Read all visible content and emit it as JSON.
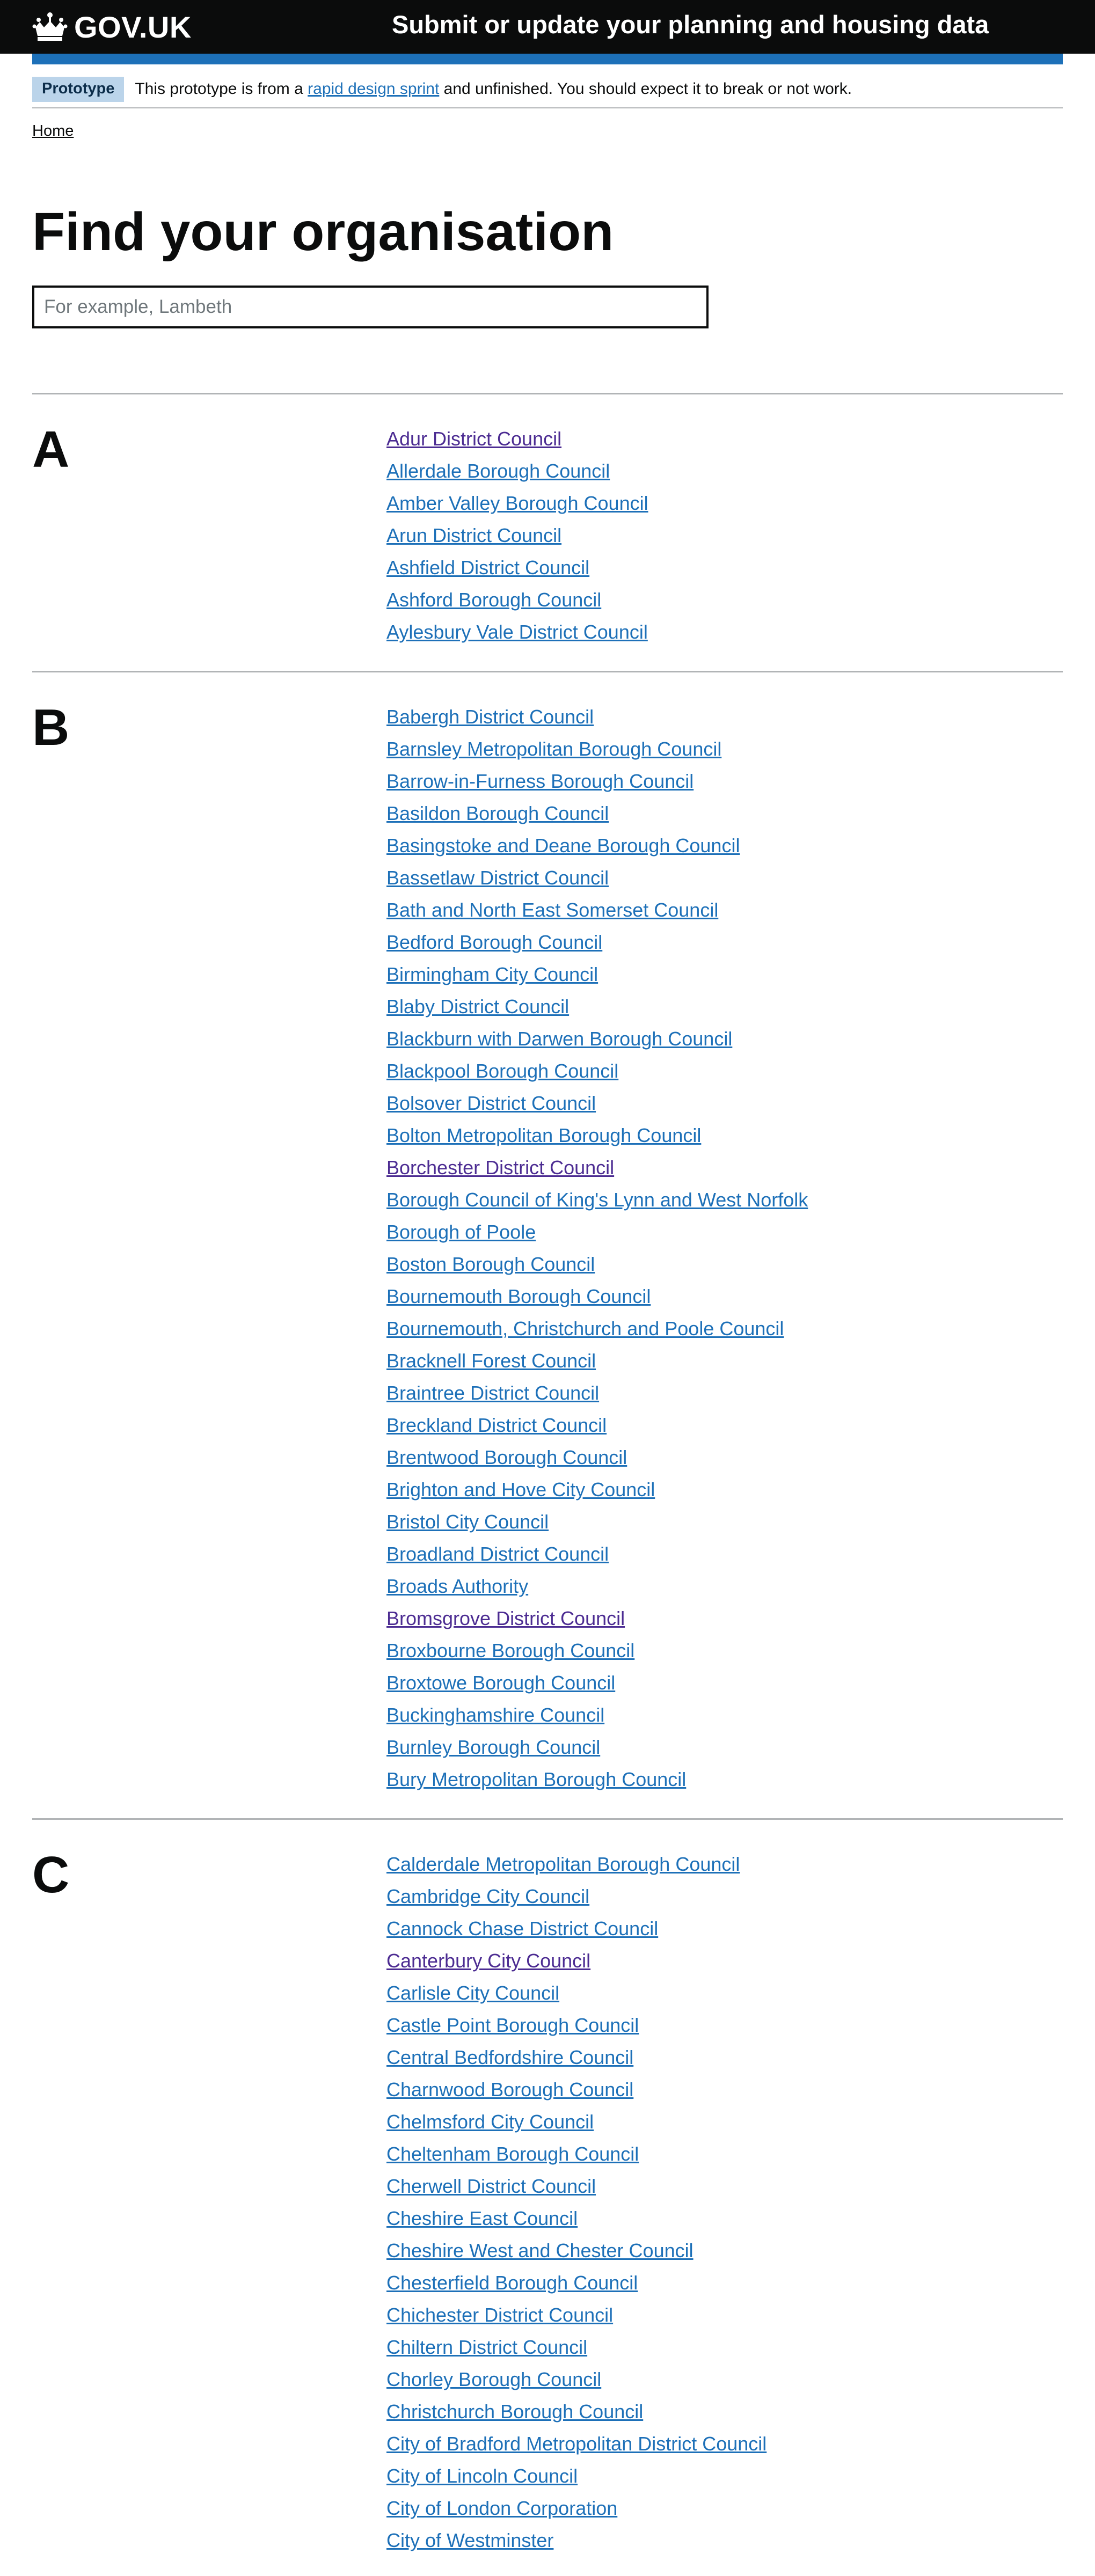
{
  "header": {
    "logo_text": "GOV.UK",
    "service_name": "Submit or update your planning and housing data"
  },
  "phase_banner": {
    "tag": "Prototype",
    "text_before": "This prototype is from a ",
    "link_text": "rapid design sprint",
    "text_after": " and unfinished. You should expect it to break or not work."
  },
  "breadcrumb": {
    "home": "Home"
  },
  "page": {
    "title": "Find your organisation",
    "search_placeholder": "For example, Lambeth"
  },
  "colors": {
    "header_bg": "#0b0c0c",
    "accent_bar": "#1d70b8",
    "link": "#1d70b8",
    "visited_link": "#4c2c92",
    "tag_bg": "#bbd4ea"
  },
  "sections": [
    {
      "letter": "A",
      "orgs": [
        {
          "name": "Adur District Council",
          "visited": true
        },
        {
          "name": "Allerdale Borough Council"
        },
        {
          "name": "Amber Valley Borough Council"
        },
        {
          "name": "Arun District Council"
        },
        {
          "name": "Ashfield District Council"
        },
        {
          "name": "Ashford Borough Council"
        },
        {
          "name": "Aylesbury Vale District Council"
        }
      ]
    },
    {
      "letter": "B",
      "orgs": [
        {
          "name": "Babergh District Council"
        },
        {
          "name": "Barnsley Metropolitan Borough Council"
        },
        {
          "name": "Barrow-in-Furness Borough Council"
        },
        {
          "name": "Basildon Borough Council"
        },
        {
          "name": "Basingstoke and Deane Borough Council"
        },
        {
          "name": "Bassetlaw District Council"
        },
        {
          "name": "Bath and North East Somerset Council"
        },
        {
          "name": "Bedford Borough Council"
        },
        {
          "name": "Birmingham City Council"
        },
        {
          "name": "Blaby District Council"
        },
        {
          "name": "Blackburn with Darwen Borough Council"
        },
        {
          "name": "Blackpool Borough Council"
        },
        {
          "name": "Bolsover District Council"
        },
        {
          "name": "Bolton Metropolitan Borough Council"
        },
        {
          "name": "Borchester District Council",
          "visited": true
        },
        {
          "name": "Borough Council of King's Lynn and West Norfolk"
        },
        {
          "name": "Borough of Poole"
        },
        {
          "name": "Boston Borough Council"
        },
        {
          "name": "Bournemouth Borough Council"
        },
        {
          "name": "Bournemouth, Christchurch and Poole Council"
        },
        {
          "name": "Bracknell Forest Council"
        },
        {
          "name": "Braintree District Council"
        },
        {
          "name": "Breckland District Council"
        },
        {
          "name": "Brentwood Borough Council"
        },
        {
          "name": "Brighton and Hove City Council"
        },
        {
          "name": "Bristol City Council"
        },
        {
          "name": "Broadland District Council"
        },
        {
          "name": "Broads Authority"
        },
        {
          "name": "Bromsgrove District Council",
          "visited": true
        },
        {
          "name": "Broxbourne Borough Council"
        },
        {
          "name": "Broxtowe Borough Council"
        },
        {
          "name": "Buckinghamshire Council"
        },
        {
          "name": "Burnley Borough Council"
        },
        {
          "name": "Bury Metropolitan Borough Council"
        }
      ]
    },
    {
      "letter": "C",
      "orgs": [
        {
          "name": "Calderdale Metropolitan Borough Council"
        },
        {
          "name": "Cambridge City Council"
        },
        {
          "name": "Cannock Chase District Council"
        },
        {
          "name": "Canterbury City Council",
          "visited": true
        },
        {
          "name": "Carlisle City Council"
        },
        {
          "name": "Castle Point Borough Council"
        },
        {
          "name": "Central Bedfordshire Council"
        },
        {
          "name": "Charnwood Borough Council"
        },
        {
          "name": "Chelmsford City Council"
        },
        {
          "name": "Cheltenham Borough Council"
        },
        {
          "name": "Cherwell District Council"
        },
        {
          "name": "Cheshire East Council"
        },
        {
          "name": "Cheshire West and Chester Council"
        },
        {
          "name": "Chesterfield Borough Council"
        },
        {
          "name": "Chichester District Council"
        },
        {
          "name": "Chiltern District Council"
        },
        {
          "name": "Chorley Borough Council"
        },
        {
          "name": "Christchurch Borough Council"
        },
        {
          "name": "City of Bradford Metropolitan District Council"
        },
        {
          "name": "City of Lincoln Council"
        },
        {
          "name": "City of London Corporation"
        },
        {
          "name": "City of Westminster"
        }
      ]
    }
  ]
}
